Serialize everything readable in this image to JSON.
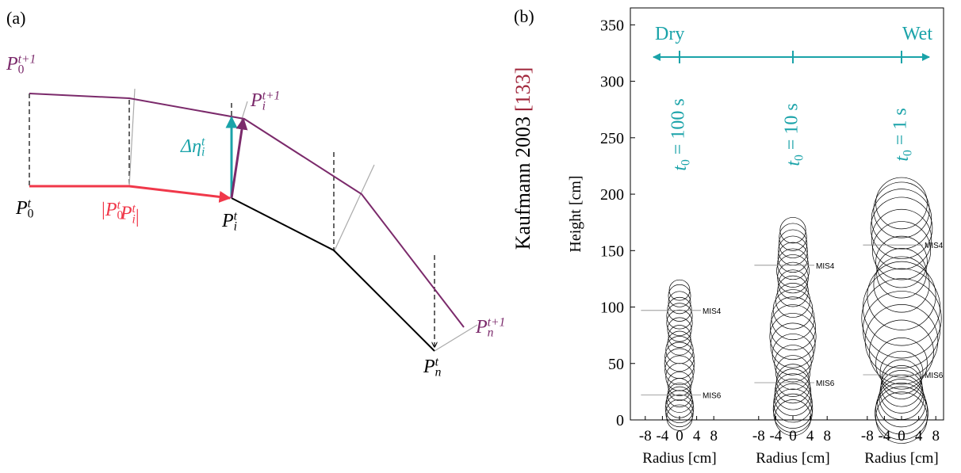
{
  "panel_a": {
    "label": "(a)",
    "p0_next": {
      "base": "P",
      "sub": "0",
      "sup": "t+1"
    },
    "pi_next": {
      "base": "P",
      "sub": "i",
      "sup": "t+1"
    },
    "pn_next": {
      "base": "P",
      "sub": "n",
      "sup": "t+1"
    },
    "p0": {
      "base": "P",
      "sub": "0",
      "sup": "t"
    },
    "pi": {
      "base": "P",
      "sub": "i",
      "sup": "t"
    },
    "pn": {
      "base": "P",
      "sub": "n",
      "sup": "t"
    },
    "delta": {
      "base": "Δη",
      "sub": "i",
      "sup": "t"
    },
    "length": {
      "open": "|",
      "p1": {
        "base": "P",
        "sub": "0",
        "sup": "t"
      },
      "p2": {
        "base": "P",
        "sub": "i",
        "sup": "t"
      },
      "close": "|"
    }
  },
  "panel_b": {
    "label": "(b)",
    "side_label": "Kaufmann 2003",
    "reference": "[133]",
    "y_label": "Height [cm]",
    "x_label": "Radius [cm]",
    "dry": "Dry",
    "wet": "Wet",
    "ylim": [
      0,
      365
    ],
    "yticks": [
      0,
      50,
      100,
      150,
      200,
      250,
      300,
      350
    ],
    "xlim": [
      -10,
      10
    ],
    "xticks": [
      -8,
      -4,
      0,
      4,
      8
    ],
    "columns": [
      {
        "t0": {
          "base": "t",
          "sub": "0",
          "rest": " = 100 s"
        },
        "heights": [
          2,
          6,
          10,
          14,
          18,
          22,
          27,
          32,
          38,
          44,
          50,
          56,
          62,
          68,
          74,
          80,
          86,
          92,
          98,
          104,
          110,
          115
        ],
        "radii": [
          3,
          3.2,
          3.3,
          3.2,
          3,
          2.8,
          2.6,
          2.8,
          3.2,
          3.4,
          3.5,
          3.4,
          3.2,
          2.8,
          2.6,
          2.8,
          3,
          3,
          2.8,
          2.6,
          2.6,
          2.4
        ],
        "markers": [
          {
            "label": "MIS4",
            "value": 97
          },
          {
            "label": "MIS6",
            "value": 22
          }
        ]
      },
      {
        "t0": {
          "base": "t",
          "sub": "0",
          "rest": " = 10 s"
        },
        "heights": [
          2,
          6,
          10,
          15,
          20,
          25,
          30,
          35,
          42,
          50,
          58,
          66,
          74,
          82,
          90,
          98,
          106,
          114,
          120,
          126,
          132,
          138,
          144,
          150,
          156,
          162,
          168
        ],
        "radii": [
          4.2,
          4.5,
          4.6,
          4.5,
          4.3,
          4.2,
          4,
          3.8,
          4,
          4.3,
          4.8,
          5.2,
          5.4,
          5.3,
          5,
          4.6,
          4,
          3.6,
          3.4,
          3.6,
          3.8,
          3.6,
          3.5,
          3.4,
          3.3,
          3.2,
          3
        ],
        "markers": [
          {
            "label": "MIS4",
            "value": 137
          },
          {
            "label": "MIS6",
            "value": 33
          }
        ]
      },
      {
        "t0": {
          "base": "t",
          "sub": "0",
          "rest": " = 1 s"
        },
        "heights": [
          2,
          6,
          10,
          15,
          20,
          25,
          30,
          36,
          42,
          50,
          60,
          70,
          80,
          90,
          100,
          110,
          120,
          130,
          140,
          150,
          160,
          170,
          178,
          186,
          192
        ],
        "radii": [
          6,
          6.2,
          6,
          5.6,
          5.2,
          5,
          4.8,
          4.6,
          5,
          6,
          7.5,
          8.5,
          9,
          9.3,
          9,
          8,
          6.5,
          5.8,
          6,
          6.8,
          7,
          7.2,
          7,
          6.5,
          6
        ],
        "markers": [
          {
            "label": "MIS4",
            "value": 155
          },
          {
            "label": "MIS6",
            "value": 40
          }
        ]
      }
    ]
  }
}
